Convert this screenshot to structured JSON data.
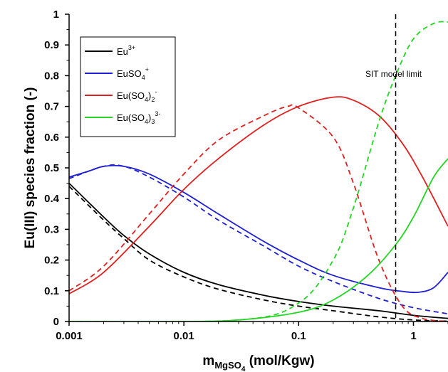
{
  "chart_data": {
    "type": "line",
    "xscale": "log",
    "xlim": [
      0.001,
      2
    ],
    "ylim": [
      0,
      1
    ],
    "xticks": [
      "0.001",
      "0.01",
      "0.1",
      "1"
    ],
    "xtick_values": [
      0.001,
      0.01,
      0.1,
      1
    ],
    "yticks": [
      "0",
      "0.1",
      "0.2",
      "0.3",
      "0.4",
      "0.5",
      "0.6",
      "0.7",
      "0.8",
      "0.9",
      "1"
    ],
    "ytick_values": [
      0,
      0.1,
      0.2,
      0.3,
      0.4,
      0.5,
      0.6,
      0.7,
      0.8,
      0.9,
      1
    ],
    "ylabel": "Eu(III) species fraction (-)",
    "xlabel": {
      "main": "m",
      "sub": "MgSO",
      "subsub": "4",
      "rest": " (mol/Kgw)"
    },
    "legend_placement": "top-left",
    "legend": [
      {
        "base": "Eu",
        "sup": "3+",
        "series": "Eu3+"
      },
      {
        "base": "EuSO",
        "sub": "4",
        "sup": "+",
        "series": "EuSO4+"
      },
      {
        "base": "Eu(SO",
        "sub": "4",
        "mid": ")",
        "sub2": "2",
        "sup": "-",
        "series": "Eu(SO4)2-"
      },
      {
        "base": "Eu(SO",
        "sub": "4",
        "mid": ")",
        "sub2": "3",
        "sup": "3-",
        "series": "Eu(SO4)33-"
      }
    ],
    "annotation": {
      "text": "SIT model limit",
      "x": 0.7
    },
    "series": [
      {
        "key": "Eu3+",
        "color": "#000000",
        "style": "solid",
        "points": [
          [
            0.001,
            0.45
          ],
          [
            0.002,
            0.34
          ],
          [
            0.003,
            0.28
          ],
          [
            0.005,
            0.22
          ],
          [
            0.01,
            0.16
          ],
          [
            0.02,
            0.12
          ],
          [
            0.05,
            0.085
          ],
          [
            0.1,
            0.065
          ],
          [
            0.2,
            0.05
          ],
          [
            0.5,
            0.035
          ],
          [
            1,
            0.02
          ],
          [
            2,
            0.01
          ]
        ]
      },
      {
        "key": "Eu3+",
        "color": "#000000",
        "style": "dashed",
        "points": [
          [
            0.001,
            0.44
          ],
          [
            0.002,
            0.33
          ],
          [
            0.003,
            0.27
          ],
          [
            0.005,
            0.2
          ],
          [
            0.01,
            0.145
          ],
          [
            0.02,
            0.105
          ],
          [
            0.05,
            0.07
          ],
          [
            0.1,
            0.05
          ],
          [
            0.2,
            0.035
          ],
          [
            0.5,
            0.015
          ],
          [
            1,
            0.005
          ],
          [
            2,
            0.001
          ]
        ]
      },
      {
        "key": "EuSO4+",
        "color": "#1f1fd6",
        "style": "solid",
        "points": [
          [
            0.001,
            0.47
          ],
          [
            0.0015,
            0.49
          ],
          [
            0.002,
            0.505
          ],
          [
            0.003,
            0.505
          ],
          [
            0.005,
            0.48
          ],
          [
            0.01,
            0.42
          ],
          [
            0.02,
            0.35
          ],
          [
            0.05,
            0.26
          ],
          [
            0.1,
            0.2
          ],
          [
            0.2,
            0.15
          ],
          [
            0.5,
            0.11
          ],
          [
            0.8,
            0.098
          ],
          [
            1.1,
            0.095
          ],
          [
            1.5,
            0.11
          ],
          [
            2,
            0.16
          ]
        ]
      },
      {
        "key": "EuSO4+",
        "color": "#1f1fd6",
        "style": "dashed",
        "points": [
          [
            0.001,
            0.465
          ],
          [
            0.002,
            0.505
          ],
          [
            0.003,
            0.505
          ],
          [
            0.005,
            0.47
          ],
          [
            0.01,
            0.405
          ],
          [
            0.02,
            0.33
          ],
          [
            0.05,
            0.245
          ],
          [
            0.1,
            0.18
          ],
          [
            0.2,
            0.13
          ],
          [
            0.5,
            0.075
          ],
          [
            1,
            0.045
          ],
          [
            2,
            0.025
          ]
        ]
      },
      {
        "key": "Eu(SO4)2-",
        "color": "#e0201f",
        "style": "solid",
        "points": [
          [
            0.001,
            0.09
          ],
          [
            0.002,
            0.16
          ],
          [
            0.005,
            0.31
          ],
          [
            0.01,
            0.43
          ],
          [
            0.02,
            0.53
          ],
          [
            0.05,
            0.64
          ],
          [
            0.1,
            0.7
          ],
          [
            0.2,
            0.73
          ],
          [
            0.3,
            0.72
          ],
          [
            0.5,
            0.67
          ],
          [
            0.8,
            0.58
          ],
          [
            1.2,
            0.47
          ],
          [
            2,
            0.31
          ]
        ]
      },
      {
        "key": "Eu(SO4)2-",
        "color": "#e0201f",
        "style": "dashed",
        "points": [
          [
            0.001,
            0.1
          ],
          [
            0.002,
            0.18
          ],
          [
            0.005,
            0.35
          ],
          [
            0.01,
            0.48
          ],
          [
            0.02,
            0.59
          ],
          [
            0.05,
            0.67
          ],
          [
            0.08,
            0.7
          ],
          [
            0.1,
            0.695
          ],
          [
            0.2,
            0.6
          ],
          [
            0.3,
            0.45
          ],
          [
            0.5,
            0.2
          ],
          [
            0.8,
            0.05
          ],
          [
            1.2,
            0.01
          ],
          [
            2,
            0.0
          ]
        ]
      },
      {
        "key": "Eu(SO4)33-",
        "color": "#22d622",
        "style": "solid",
        "points": [
          [
            0.001,
            0.0
          ],
          [
            0.01,
            0.0
          ],
          [
            0.03,
            0.005
          ],
          [
            0.1,
            0.03
          ],
          [
            0.2,
            0.07
          ],
          [
            0.4,
            0.15
          ],
          [
            0.7,
            0.25
          ],
          [
            1,
            0.34
          ],
          [
            1.5,
            0.47
          ],
          [
            2,
            0.53
          ]
        ]
      },
      {
        "key": "Eu(SO4)33-",
        "color": "#22d622",
        "style": "dashed",
        "points": [
          [
            0.001,
            0.0
          ],
          [
            0.03,
            0.005
          ],
          [
            0.1,
            0.06
          ],
          [
            0.2,
            0.2
          ],
          [
            0.3,
            0.37
          ],
          [
            0.5,
            0.65
          ],
          [
            0.7,
            0.8
          ],
          [
            1,
            0.92
          ],
          [
            1.5,
            0.97
          ],
          [
            2,
            0.975
          ]
        ]
      }
    ]
  }
}
